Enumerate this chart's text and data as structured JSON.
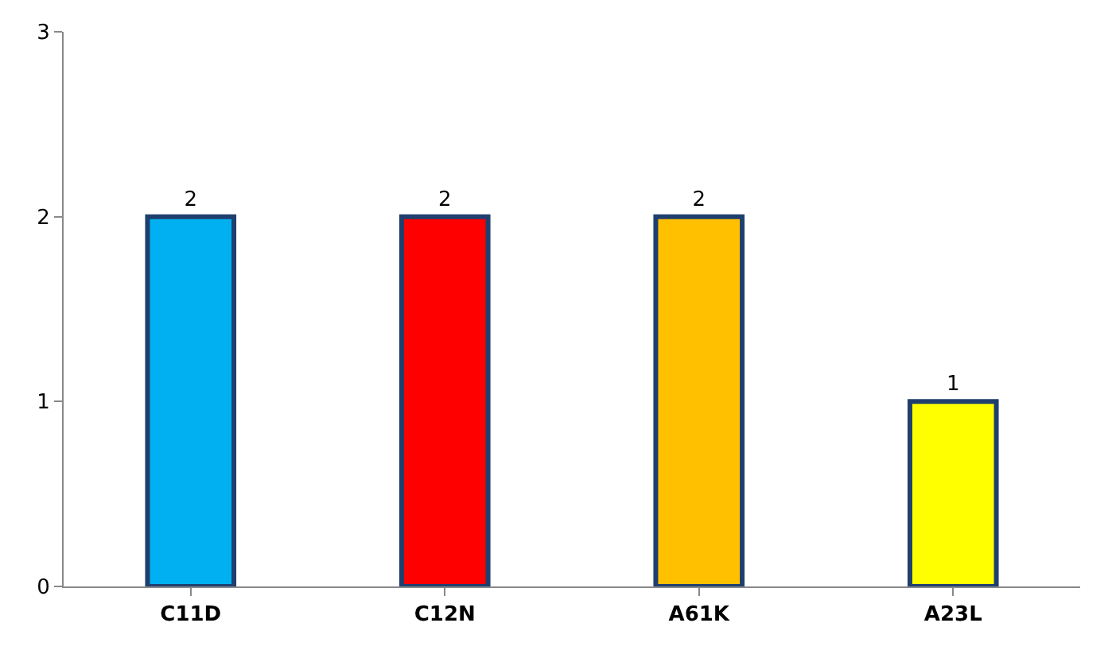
{
  "chart_data": {
    "type": "bar",
    "categories": [
      "C11D",
      "C12N",
      "A61K",
      "A23L"
    ],
    "values": [
      2,
      2,
      2,
      1
    ],
    "colors": [
      "#00b0f0",
      "#ff0000",
      "#ffc000",
      "#ffff00"
    ],
    "ylim": [
      0,
      3
    ],
    "yticks": [
      0,
      1,
      2,
      3
    ],
    "data_labels": true
  }
}
